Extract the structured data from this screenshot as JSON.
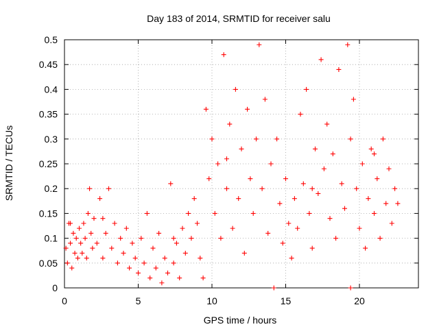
{
  "chart_data": {
    "type": "scatter",
    "title": "Day 183 of 2014, SRMTID for receiver salu",
    "xlabel": "GPS time / hours",
    "ylabel": "SRMTID / TECUs",
    "xlim": [
      0,
      24
    ],
    "ylim": [
      0,
      0.5
    ],
    "xticks": [
      "0",
      "5",
      "10",
      "15",
      "20"
    ],
    "yticks": [
      "0",
      "0.05",
      "0.1",
      "0.15",
      "0.2",
      "0.25",
      "0.3",
      "0.35",
      "0.4",
      "0.45",
      "0.5"
    ],
    "grid": true,
    "marker": "+",
    "color": "#ff0000",
    "series": [
      {
        "values": [
          [
            0.1,
            0.08
          ],
          [
            0.2,
            0.05
          ],
          [
            0.3,
            0.13
          ],
          [
            0.4,
            0.09
          ],
          [
            0.5,
            0.04
          ],
          [
            0.6,
            0.11
          ],
          [
            0.7,
            0.07
          ],
          [
            0.8,
            0.1
          ],
          [
            0.9,
            0.06
          ],
          [
            1.0,
            0.12
          ],
          [
            1.1,
            0.09
          ],
          [
            1.2,
            0.07
          ],
          [
            1.3,
            0.13
          ],
          [
            1.4,
            0.1
          ],
          [
            1.5,
            0.06
          ],
          [
            1.6,
            0.15
          ],
          [
            1.7,
            0.2
          ],
          [
            1.8,
            0.11
          ],
          [
            1.9,
            0.08
          ],
          [
            2.0,
            0.14
          ],
          [
            2.2,
            0.09
          ],
          [
            2.4,
            0.18
          ],
          [
            2.6,
            0.06
          ],
          [
            2.8,
            0.11
          ],
          [
            3.0,
            0.2
          ],
          [
            3.2,
            0.08
          ],
          [
            3.4,
            0.13
          ],
          [
            3.6,
            0.05
          ],
          [
            3.8,
            0.1
          ],
          [
            4.0,
            0.07
          ],
          [
            4.2,
            0.12
          ],
          [
            4.4,
            0.04
          ],
          [
            4.6,
            0.09
          ],
          [
            4.8,
            0.06
          ],
          [
            5.0,
            0.03
          ],
          [
            5.2,
            0.1
          ],
          [
            5.4,
            0.05
          ],
          [
            5.6,
            0.15
          ],
          [
            5.8,
            0.02
          ],
          [
            6.0,
            0.08
          ],
          [
            6.2,
            0.04
          ],
          [
            6.4,
            0.11
          ],
          [
            6.6,
            0.01
          ],
          [
            6.8,
            0.06
          ],
          [
            7.0,
            0.03
          ],
          [
            7.2,
            0.21
          ],
          [
            7.4,
            0.05
          ],
          [
            7.6,
            0.09
          ],
          [
            7.8,
            0.02
          ],
          [
            8.0,
            0.12
          ],
          [
            8.2,
            0.07
          ],
          [
            8.4,
            0.15
          ],
          [
            8.6,
            0.1
          ],
          [
            8.8,
            0.18
          ],
          [
            9.0,
            0.13
          ],
          [
            9.2,
            0.06
          ],
          [
            9.4,
            0.02
          ],
          [
            9.6,
            0.36
          ],
          [
            9.8,
            0.22
          ],
          [
            10.0,
            0.3
          ],
          [
            10.2,
            0.15
          ],
          [
            10.4,
            0.25
          ],
          [
            10.6,
            0.1
          ],
          [
            10.8,
            0.47
          ],
          [
            11.0,
            0.2
          ],
          [
            11.2,
            0.33
          ],
          [
            11.4,
            0.12
          ],
          [
            11.6,
            0.4
          ],
          [
            11.8,
            0.18
          ],
          [
            12.0,
            0.28
          ],
          [
            12.2,
            0.07
          ],
          [
            12.4,
            0.36
          ],
          [
            12.6,
            0.22
          ],
          [
            12.8,
            0.15
          ],
          [
            13.0,
            0.3
          ],
          [
            13.2,
            0.49
          ],
          [
            13.4,
            0.2
          ],
          [
            13.6,
            0.38
          ],
          [
            13.8,
            0.11
          ],
          [
            14.0,
            0.25
          ],
          [
            14.2,
            0.0
          ],
          [
            14.4,
            0.3
          ],
          [
            14.6,
            0.17
          ],
          [
            14.8,
            0.09
          ],
          [
            15.0,
            0.22
          ],
          [
            15.2,
            0.13
          ],
          [
            15.4,
            0.06
          ],
          [
            15.6,
            0.18
          ],
          [
            15.8,
            0.12
          ],
          [
            16.0,
            0.35
          ],
          [
            16.2,
            0.21
          ],
          [
            16.4,
            0.4
          ],
          [
            16.6,
            0.15
          ],
          [
            16.8,
            0.08
          ],
          [
            17.0,
            0.28
          ],
          [
            17.2,
            0.19
          ],
          [
            17.4,
            0.46
          ],
          [
            17.6,
            0.24
          ],
          [
            17.8,
            0.33
          ],
          [
            18.0,
            0.14
          ],
          [
            18.2,
            0.27
          ],
          [
            18.4,
            0.1
          ],
          [
            18.6,
            0.44
          ],
          [
            18.8,
            0.21
          ],
          [
            19.0,
            0.16
          ],
          [
            19.2,
            0.49
          ],
          [
            19.4,
            0.3
          ],
          [
            19.6,
            0.38
          ],
          [
            19.8,
            0.2
          ],
          [
            20.0,
            0.12
          ],
          [
            20.2,
            0.25
          ],
          [
            20.4,
            0.08
          ],
          [
            20.6,
            0.18
          ],
          [
            20.8,
            0.28
          ],
          [
            21.0,
            0.15
          ],
          [
            21.2,
            0.22
          ],
          [
            21.4,
            0.1
          ],
          [
            21.6,
            0.3
          ],
          [
            21.8,
            0.17
          ],
          [
            22.0,
            0.24
          ],
          [
            22.2,
            0.13
          ],
          [
            22.4,
            0.2
          ],
          [
            22.6,
            0.17
          ],
          [
            0.4,
            0.13
          ],
          [
            2.6,
            0.14
          ],
          [
            7.4,
            0.1
          ],
          [
            11.0,
            0.26
          ],
          [
            16.8,
            0.2
          ],
          [
            19.4,
            0.0
          ],
          [
            21.0,
            0.27
          ]
        ]
      }
    ]
  }
}
